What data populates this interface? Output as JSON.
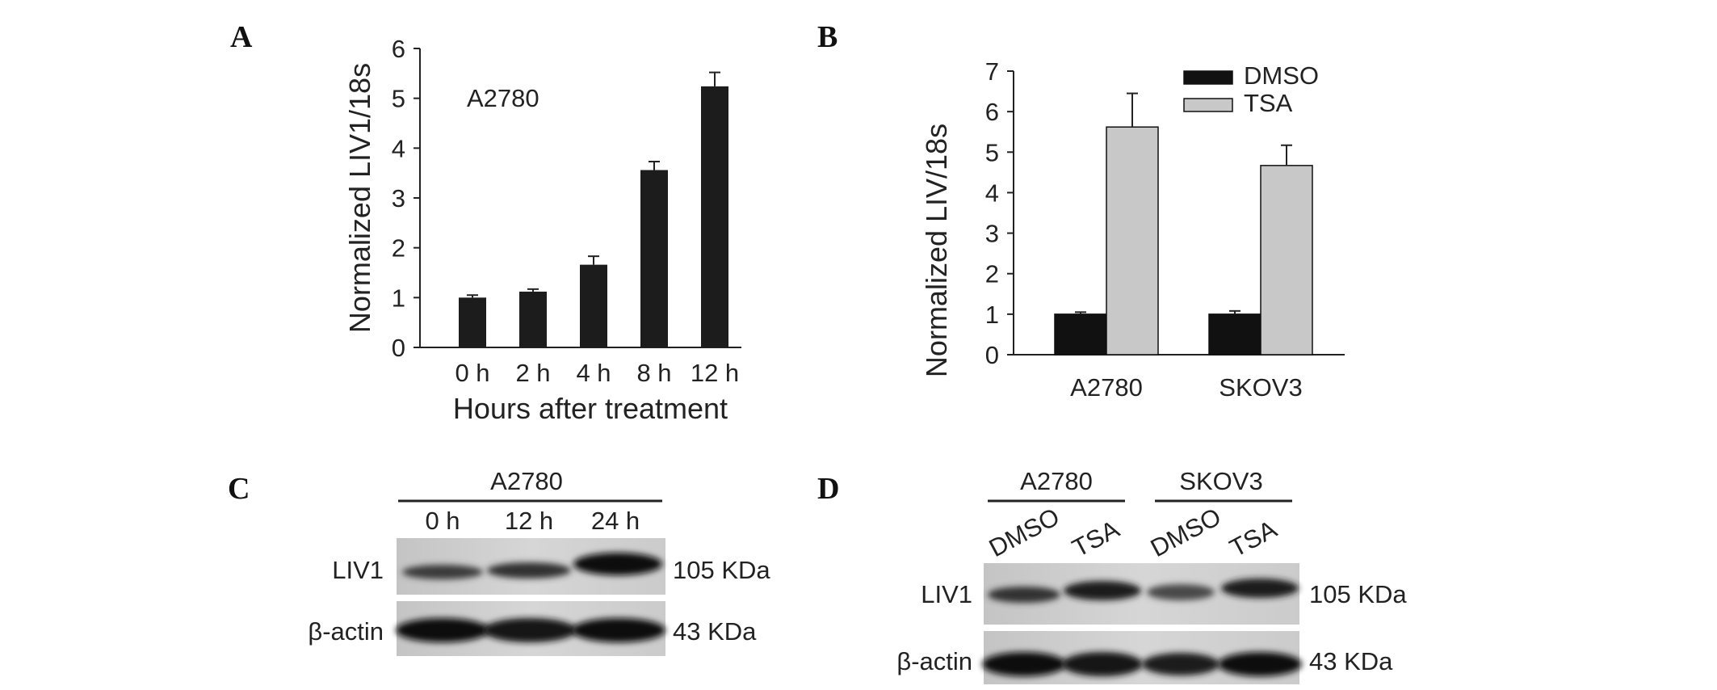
{
  "panels": {
    "a": {
      "label": "A",
      "annotation": "A2780",
      "ylabel": "Normalized LIV1/18s",
      "xlabel": "Hours after treatment",
      "yticks": [
        "0",
        "1",
        "2",
        "3",
        "4",
        "5",
        "6"
      ]
    },
    "b": {
      "label": "B",
      "ylabel": "Normalized  LIV/18s",
      "yticks": [
        "0",
        "1",
        "2",
        "3",
        "4",
        "5",
        "6",
        "7"
      ],
      "legend": [
        "DMSO",
        "TSA"
      ]
    },
    "c": {
      "label": "C",
      "group": "A2780",
      "lanes": [
        "0 h",
        "12 h",
        "24 h"
      ],
      "rows": [
        "LIV1",
        "β-actin"
      ],
      "sizes": [
        "105 KDa",
        "43 KDa"
      ]
    },
    "d": {
      "label": "D",
      "groups": [
        "A2780",
        "SKOV3"
      ],
      "lanes": [
        "DMSO",
        "TSA",
        "DMSO",
        "TSA"
      ],
      "rows": [
        "LIV1",
        "β-actin"
      ],
      "sizes": [
        "105 KDa",
        "43 KDa"
      ]
    }
  },
  "colors": {
    "dmso": "#111111",
    "tsa": "#c8c8c8",
    "bar": "#1c1c1c"
  },
  "chart_data": [
    {
      "type": "bar",
      "categories": [
        "0 h",
        "2 h",
        "4 h",
        "8 h",
        "12 h"
      ],
      "values": [
        1.0,
        1.12,
        1.66,
        3.56,
        5.24
      ],
      "errors": [
        0.05,
        0.05,
        0.17,
        0.17,
        0.28
      ],
      "xlabel": "Hours after treatment",
      "ylabel": "Normalized LIV1/18s",
      "ylim": [
        0,
        6
      ]
    },
    {
      "type": "bar",
      "categories": [
        "A2780",
        "SKOV3"
      ],
      "series": [
        {
          "name": "DMSO",
          "values": [
            1.0,
            1.0
          ],
          "errors": [
            0.05,
            0.08
          ]
        },
        {
          "name": "TSA",
          "values": [
            5.62,
            4.67
          ],
          "errors": [
            0.83,
            0.5
          ]
        }
      ],
      "ylabel": "Normalized  LIV/18s",
      "ylim": [
        0,
        7
      ],
      "legend": "top-right"
    }
  ]
}
